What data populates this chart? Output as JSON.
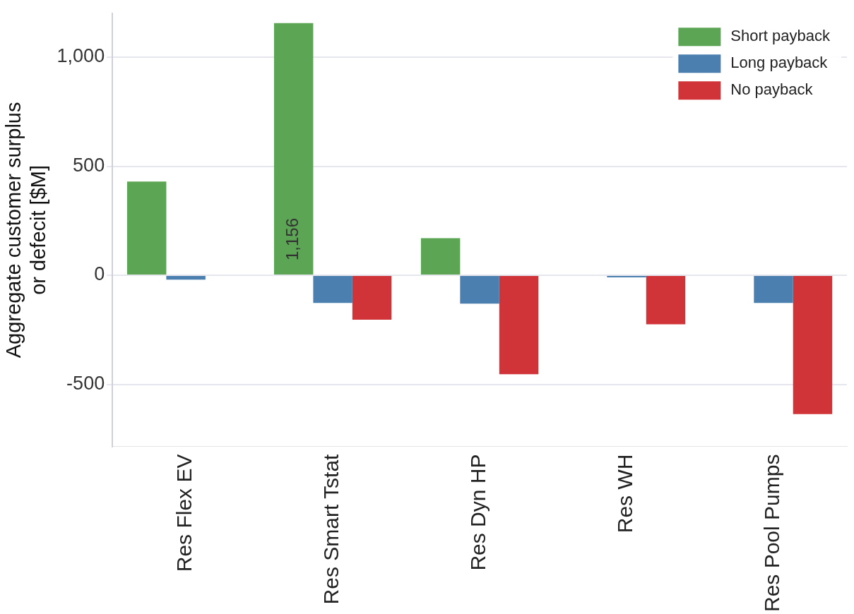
{
  "chart_data": {
    "type": "bar",
    "ylabel": "Aggregate customer surplus\nor defecit [$M]",
    "categories": [
      "Res Flex EV",
      "Res Smart Tstat",
      "Res Dyn HP",
      "Res WH",
      "Res Pool Pumps"
    ],
    "series": [
      {
        "name": "Short payback",
        "color": "#5ba555",
        "values": [
          430,
          1156,
          170,
          null,
          null
        ],
        "value_labels": [
          null,
          "1,156",
          null,
          null,
          null
        ]
      },
      {
        "name": "Long payback",
        "color": "#4a7fb0",
        "values": [
          -20,
          -127,
          -130,
          -10,
          -127
        ]
      },
      {
        "name": "No payback",
        "color": "#d13438",
        "values": [
          null,
          -204,
          -454,
          -225,
          -637
        ]
      }
    ],
    "ylim": [
      -785,
      1200
    ],
    "yticks": [
      -500,
      0,
      500,
      {
        "value": 1000,
        "label": "1,000"
      }
    ],
    "grid": "y",
    "legend": "top right"
  }
}
